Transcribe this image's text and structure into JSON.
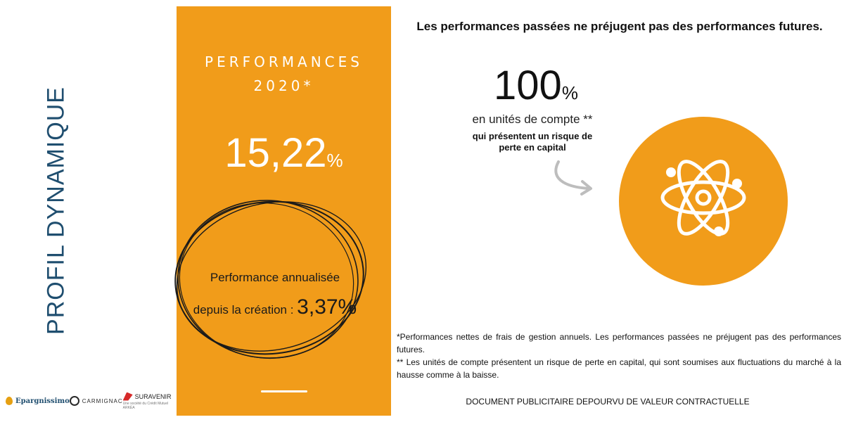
{
  "side": {
    "title": "PROFIL DYNAMIQUE"
  },
  "logos": {
    "epargnissimo": "Epargnissimo",
    "carmignac": "CARMIGNAC",
    "suravenir": "SURAVENIR",
    "suravenir_sub": "Une société du Crédit Mutuel ARKÉA"
  },
  "panel": {
    "title_line1": "PERFORMANCES",
    "title_line2": "2020*",
    "value": "15,22",
    "value_unit": "%",
    "annual_line1": "Performance  annualisée",
    "annual_line2": "depuis la création : ",
    "annual_value": "3,37%"
  },
  "right": {
    "headline": "Les performances passées ne préjugent pas des performances futures.",
    "uc_value": "100",
    "uc_unit": "%",
    "uc_label": "en unités de compte **",
    "risk_line1": "qui présentent un risque de",
    "risk_line2": "perte en capital"
  },
  "footnotes": {
    "f1": "*Performances nettes de frais de gestion annuels. Les performances passées ne préjugent pas des performances futures.",
    "f2": "** Les unités de compte présentent un risque de perte en capital, qui sont soumises aux fluctuations du marché à la hausse comme à la baisse.",
    "doc": "DOCUMENT PUBLICITAIRE DEPOURVU DE VALEUR CONTRACTUELLE"
  },
  "colors": {
    "orange": "#f19c1a",
    "navy": "#1f4e6f"
  },
  "icons": {
    "orb": "atom-icon",
    "arrow": "curved-arrow-icon"
  }
}
